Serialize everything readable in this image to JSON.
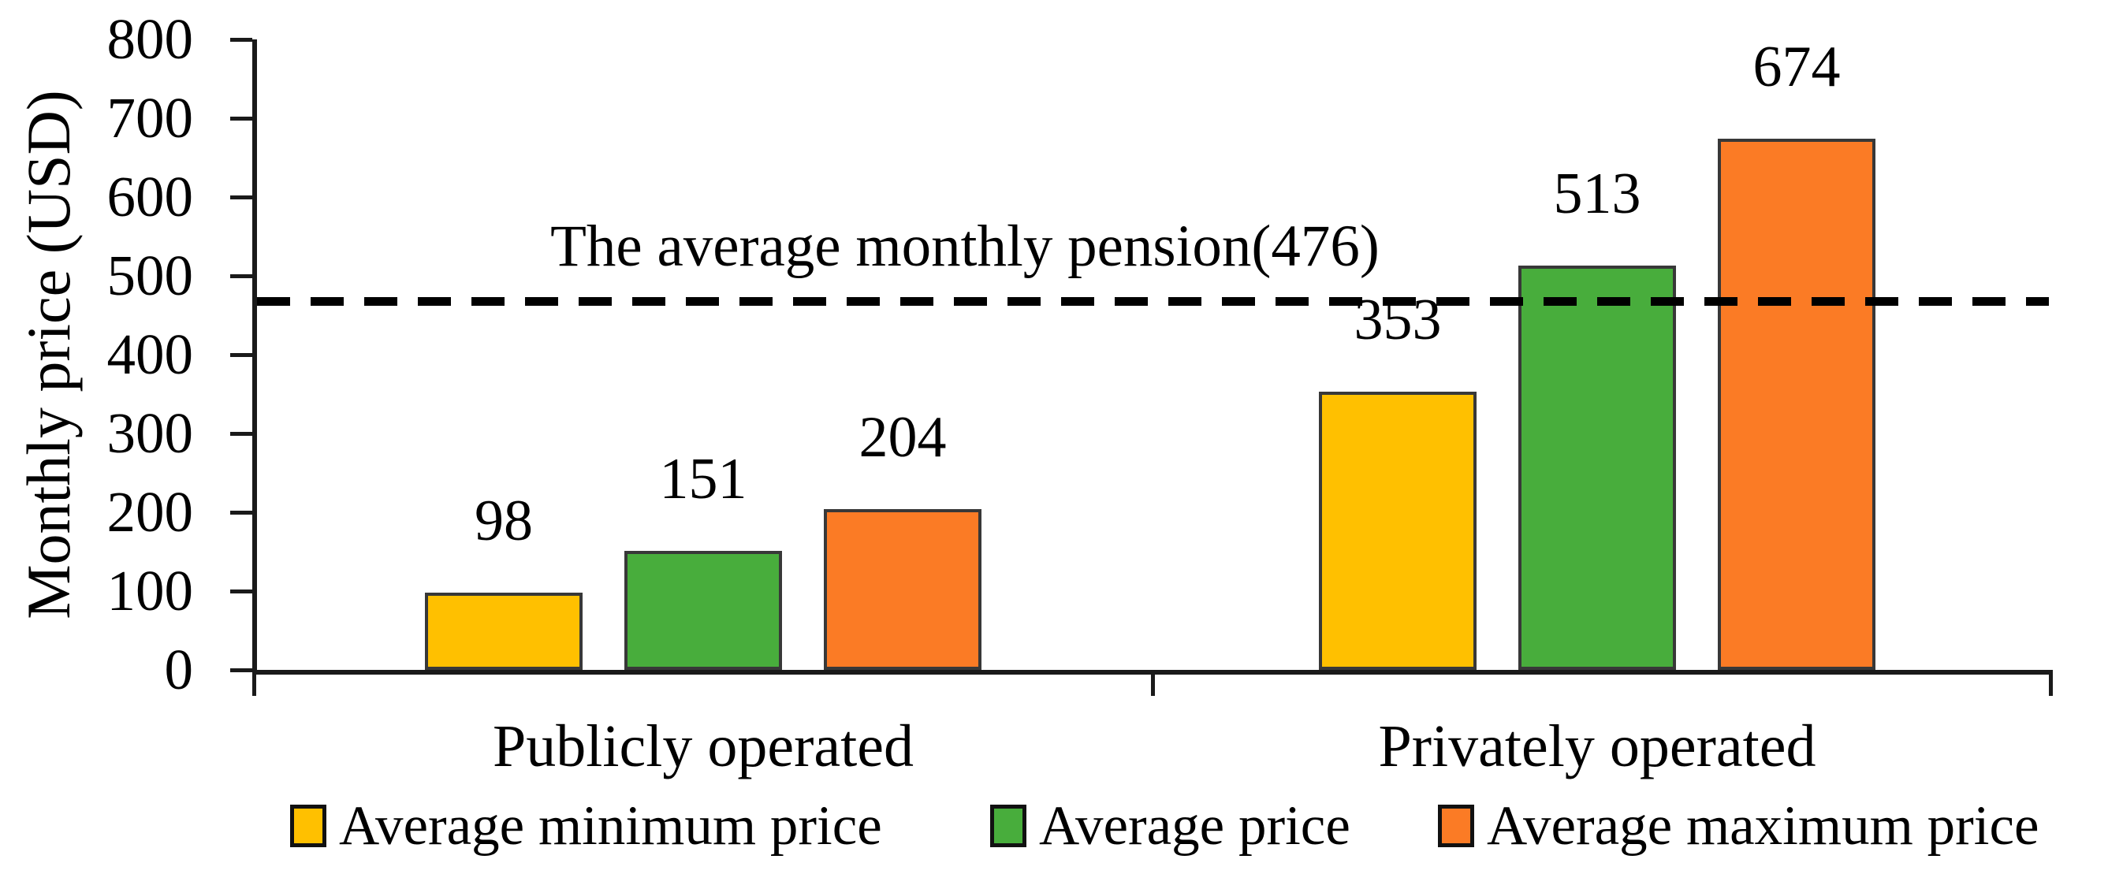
{
  "chart_data": {
    "type": "bar",
    "title": "",
    "ylabel": "Monthly price (USD)",
    "xlabel": "",
    "ylim": [
      0,
      800
    ],
    "ytick_interval": 100,
    "ytick_labels": [
      "0",
      "100",
      "200",
      "300",
      "400",
      "500",
      "600",
      "700",
      "800"
    ],
    "categories": [
      "Publicly operated",
      "Privately operated"
    ],
    "series": [
      {
        "name": "Average minimum price",
        "color": "#FFC000",
        "values": [
          98,
          353
        ]
      },
      {
        "name": "Average price",
        "color": "#48AD3C",
        "values": [
          151,
          513
        ]
      },
      {
        "name": "Average maximum price",
        "color": "#FB7B25",
        "values": [
          204,
          674
        ]
      }
    ],
    "reference_line": {
      "label": "The average monthly pension(476)",
      "value": 476,
      "style": "dashed",
      "color": "#000000"
    },
    "legend_position": "bottom",
    "grid": false,
    "axis_color": "#000000",
    "text_color": "#000000"
  }
}
